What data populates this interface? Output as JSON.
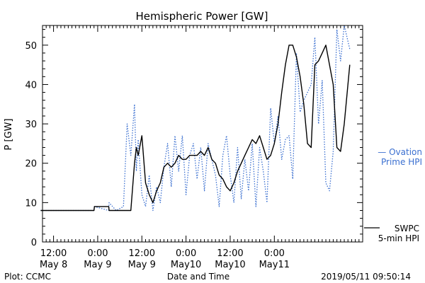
{
  "chart_data": {
    "type": "line",
    "title": "Hemispheric Power [GW]",
    "ylabel": "P [GW]",
    "xlabel": "Date and Time",
    "ylim": [
      0,
      55
    ],
    "yticks": [
      0,
      10,
      20,
      30,
      40,
      50
    ],
    "xlim": [
      0,
      87
    ],
    "x_ticks": [
      {
        "x": 3,
        "line1": "12:00",
        "line2": "May 8"
      },
      {
        "x": 15,
        "line1": "0:00",
        "line2": "May 9"
      },
      {
        "x": 27,
        "line1": "12:00",
        "line2": "May 9"
      },
      {
        "x": 39,
        "line1": "0:00",
        "line2": "May10"
      },
      {
        "x": 51,
        "line1": "12:00",
        "line2": "May10"
      },
      {
        "x": 63,
        "line1": "0:00",
        "line2": "May11"
      }
    ],
    "grid": false,
    "x": [
      -0.5,
      14,
      14.1,
      18,
      18.1,
      20,
      20.1,
      22,
      23,
      24,
      25,
      25.5,
      26,
      27,
      28,
      29,
      30,
      31,
      32,
      33,
      34,
      35,
      36,
      37,
      38,
      39,
      40,
      41,
      42,
      43,
      44,
      45,
      46,
      47,
      48,
      49,
      50,
      51,
      52,
      53,
      54,
      55,
      56,
      57,
      58,
      59,
      60,
      61,
      62,
      63,
      64,
      65,
      66,
      67,
      68,
      69,
      70,
      71,
      72,
      73,
      74,
      75,
      76,
      77,
      78,
      79,
      80,
      81,
      82,
      83.5
    ],
    "series": [
      {
        "name": "Ovation Prime HPI",
        "color": "#3a6fd0",
        "style": "dotted",
        "values": [
          8,
          8,
          9,
          8,
          10,
          8,
          8,
          9,
          30,
          22,
          35,
          18,
          26,
          12,
          9,
          17,
          8,
          14,
          10,
          19,
          25,
          14,
          27,
          18,
          27,
          12,
          22,
          25,
          16,
          24,
          13,
          25,
          21,
          17,
          9,
          22,
          27,
          17,
          10,
          24,
          11,
          21,
          13,
          25,
          9,
          24,
          18,
          10,
          34,
          25,
          32,
          21,
          26,
          27,
          16,
          48,
          33,
          36,
          38,
          40,
          52,
          30,
          41,
          15,
          13,
          23,
          54,
          46,
          55,
          49
        ]
      },
      {
        "name": "SWPC 5-min HPI",
        "color": "#000000",
        "style": "solid",
        "values": [
          8,
          8,
          9,
          9,
          8,
          8,
          8,
          8,
          8,
          8,
          20,
          24,
          22,
          27,
          15,
          12,
          10,
          13,
          15,
          19,
          20,
          19,
          20,
          22,
          21,
          21,
          22,
          22,
          22,
          23,
          22,
          24,
          21,
          20,
          17,
          16,
          14,
          13,
          15,
          18,
          20,
          22,
          24,
          26,
          25,
          27,
          24,
          21,
          22,
          25,
          30,
          38,
          45,
          50,
          50,
          47,
          42,
          35,
          25,
          24,
          45,
          46,
          48,
          50,
          45,
          40,
          24,
          23,
          30,
          45
        ]
      }
    ],
    "legend": [
      {
        "symbol": "— ",
        "line1": "Ovation",
        "line2": "Prime HPI",
        "color": "#3a6fd0"
      },
      {
        "symbol": "",
        "line1": "SWPC",
        "line2": "5-min HPI",
        "color": "#000000"
      }
    ]
  },
  "footer": {
    "left": "Plot: CCMC",
    "timestamp": "2019/05/11 09:50:14"
  }
}
